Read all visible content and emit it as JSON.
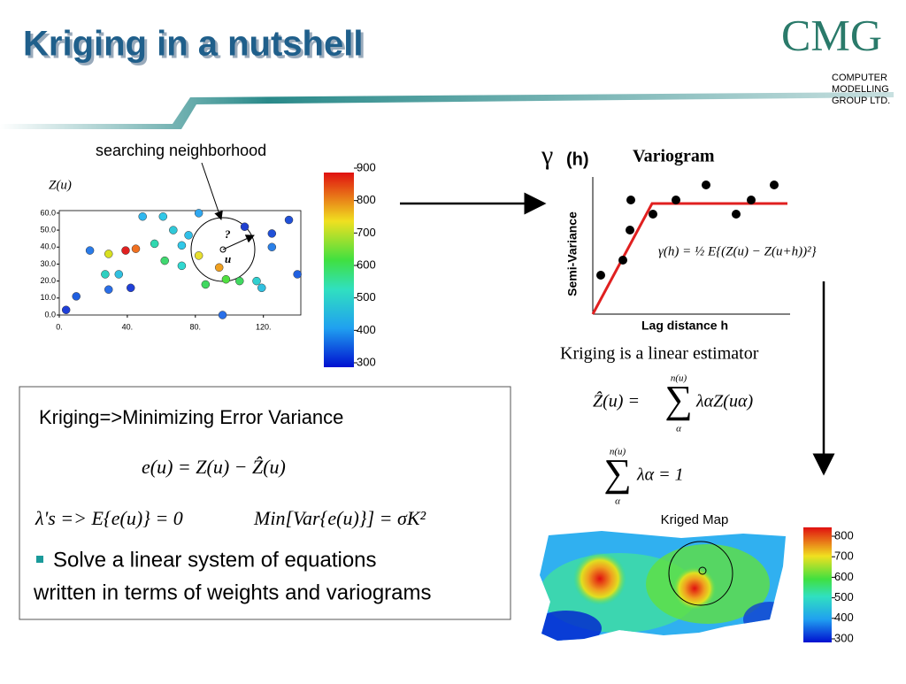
{
  "header": {
    "title": "Kriging in a nutshell",
    "logo": {
      "mark": "CMG",
      "lines": [
        "COMPUTER",
        "MODELLING",
        "GROUP LTD."
      ]
    }
  },
  "scatter": {
    "label": "searching  neighborhood",
    "zlabel": "Z(u)",
    "unknown": "?",
    "point_label": "u",
    "xlim": [
      0,
      142
    ],
    "ylim": [
      0,
      61.5
    ],
    "xticks": [
      {
        "value": 0,
        "label": "0."
      },
      {
        "value": 40,
        "label": "40."
      },
      {
        "value": 80,
        "label": "80."
      },
      {
        "value": 120,
        "label": "120."
      }
    ],
    "yticks": [
      {
        "value": 0,
        "label": "0.0"
      },
      {
        "value": 10,
        "label": "10.0"
      },
      {
        "value": 20,
        "label": "20.0"
      },
      {
        "value": 30,
        "label": "30.0"
      },
      {
        "value": 40,
        "label": "40.0"
      },
      {
        "value": 50,
        "label": "50.0"
      },
      {
        "value": 60,
        "label": "60.0"
      }
    ],
    "points": [
      {
        "x": 4,
        "y": 3,
        "color": "#1f3fd8"
      },
      {
        "x": 10,
        "y": 11,
        "color": "#1f5fe0"
      },
      {
        "x": 18,
        "y": 38,
        "color": "#2a7be8"
      },
      {
        "x": 29,
        "y": 36,
        "color": "#d8e020"
      },
      {
        "x": 39,
        "y": 38,
        "color": "#e02020"
      },
      {
        "x": 45,
        "y": 39,
        "color": "#f07020"
      },
      {
        "x": 27,
        "y": 24,
        "color": "#30d0c0"
      },
      {
        "x": 35,
        "y": 24,
        "color": "#30c0e0"
      },
      {
        "x": 29,
        "y": 15,
        "color": "#2a6ee8"
      },
      {
        "x": 42,
        "y": 16,
        "color": "#2040d8"
      },
      {
        "x": 49,
        "y": 58,
        "color": "#30b8f0"
      },
      {
        "x": 61,
        "y": 58,
        "color": "#30c8e8"
      },
      {
        "x": 82,
        "y": 60,
        "color": "#30a8f0"
      },
      {
        "x": 56,
        "y": 42,
        "color": "#30d8b0"
      },
      {
        "x": 67,
        "y": 50,
        "color": "#30c8d8"
      },
      {
        "x": 62,
        "y": 32,
        "color": "#40d870"
      },
      {
        "x": 72,
        "y": 29,
        "color": "#30d8d0"
      },
      {
        "x": 72,
        "y": 41,
        "color": "#30c8e8"
      },
      {
        "x": 82,
        "y": 35,
        "color": "#e8e030"
      },
      {
        "x": 86,
        "y": 18,
        "color": "#40d860"
      },
      {
        "x": 94,
        "y": 28,
        "color": "#f0a020"
      },
      {
        "x": 98,
        "y": 21,
        "color": "#50e040"
      },
      {
        "x": 106,
        "y": 20,
        "color": "#40d860"
      },
      {
        "x": 109,
        "y": 52,
        "color": "#2040d0"
      },
      {
        "x": 116,
        "y": 20,
        "color": "#30d0d0"
      },
      {
        "x": 119,
        "y": 16,
        "color": "#30c0e0"
      },
      {
        "x": 125,
        "y": 40,
        "color": "#2a80e8"
      },
      {
        "x": 125,
        "y": 48,
        "color": "#2050d8"
      },
      {
        "x": 135,
        "y": 56,
        "color": "#2050d8"
      },
      {
        "x": 140,
        "y": 24,
        "color": "#2060e0"
      },
      {
        "x": 96,
        "y": 0,
        "color": "#2a70e8"
      },
      {
        "x": 76,
        "y": 47,
        "color": "#30c0e8"
      }
    ],
    "colorbar": {
      "lim": [
        300,
        900
      ],
      "ticks": [
        900,
        800,
        700,
        600,
        500,
        400,
        300
      ]
    }
  },
  "variogram": {
    "gamma": "γ",
    "h": "(h)",
    "title": "Variogram",
    "ylabel": "Semi-Variance",
    "xlabel": "Lag distance h",
    "formula": "γ(h) = ½ E{(Z(u) − Z(u+h))²}"
  },
  "estimator": {
    "statement": "Kriging is  a linear estimator",
    "lhs": "Ẑ(u) =",
    "upper": "n(u)",
    "lower": "α",
    "rhs": "λαZ(uα)",
    "constraint_upper": "n(u)",
    "constraint_lower": "α",
    "constraint_rhs": "λα = 1"
  },
  "box": {
    "heading": "Kriging=>Minimizing Error Variance",
    "eq1": "e(u) = Z(u) − Ẑ(u)",
    "eq2a": "λ's => E{e(u)} = 0",
    "eq2b": "Min[Var{e(u)}] = σK²",
    "bullet": [
      "Solve a linear system of equations",
      "written in terms of weights and variograms"
    ]
  },
  "map": {
    "title": "Kriged Map",
    "colorbar": {
      "lim": [
        300,
        800
      ],
      "ticks": [
        800,
        700,
        600,
        500,
        400,
        300
      ]
    }
  }
}
